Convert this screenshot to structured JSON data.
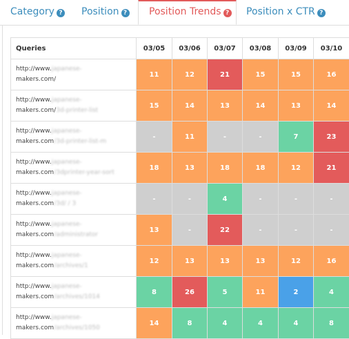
{
  "tabs": [
    {
      "label": "Category",
      "active": false
    },
    {
      "label": "Position",
      "active": false
    },
    {
      "label": "Position Trends",
      "active": true
    },
    {
      "label": "Position x CTR",
      "active": false
    }
  ],
  "table": {
    "query_header": "Queries",
    "dates": [
      "03/05",
      "03/06",
      "03/07",
      "03/08",
      "03/09",
      "03/10"
    ],
    "rows": [
      {
        "line1": "http://www.",
        "b1": "japanese-",
        "line2": "makers.com/",
        "b2": "",
        "cells": [
          {
            "v": "11",
            "c": "orange"
          },
          {
            "v": "12",
            "c": "orange"
          },
          {
            "v": "21",
            "c": "red"
          },
          {
            "v": "15",
            "c": "orange"
          },
          {
            "v": "15",
            "c": "orange"
          },
          {
            "v": "16",
            "c": "orange"
          }
        ]
      },
      {
        "line1": "http://www.",
        "b1": "japanese-",
        "line2": "makers.com/",
        "b2": "3d-printer-list",
        "cells": [
          {
            "v": "15",
            "c": "orange"
          },
          {
            "v": "14",
            "c": "orange"
          },
          {
            "v": "13",
            "c": "orange"
          },
          {
            "v": "14",
            "c": "orange"
          },
          {
            "v": "13",
            "c": "orange"
          },
          {
            "v": "14",
            "c": "orange"
          }
        ]
      },
      {
        "line1": "http://www.",
        "b1": "japanese-",
        "line2": "makers.com",
        "b2": "/3d-printer-list-m",
        "cells": [
          {
            "v": "-",
            "c": "gray"
          },
          {
            "v": "11",
            "c": "orange"
          },
          {
            "v": "-",
            "c": "gray"
          },
          {
            "v": "-",
            "c": "gray"
          },
          {
            "v": "7",
            "c": "green"
          },
          {
            "v": "23",
            "c": "red"
          }
        ]
      },
      {
        "line1": "http://www.",
        "b1": "japanese-",
        "line2": "makers.com",
        "b2": "/3dprinter-year-sort",
        "cells": [
          {
            "v": "18",
            "c": "orange"
          },
          {
            "v": "13",
            "c": "orange"
          },
          {
            "v": "18",
            "c": "orange"
          },
          {
            "v": "18",
            "c": "orange"
          },
          {
            "v": "12",
            "c": "orange"
          },
          {
            "v": "21",
            "c": "red"
          }
        ]
      },
      {
        "line1": "http://www.",
        "b1": "japanese-",
        "line2": "makers.com",
        "b2": "/3d/ / 3",
        "cells": [
          {
            "v": "-",
            "c": "gray"
          },
          {
            "v": "-",
            "c": "gray"
          },
          {
            "v": "4",
            "c": "green"
          },
          {
            "v": "-",
            "c": "gray"
          },
          {
            "v": "-",
            "c": "gray"
          },
          {
            "v": "-",
            "c": "gray"
          }
        ]
      },
      {
        "line1": "http://www.",
        "b1": "japanese-",
        "line2": "makers.com",
        "b2": "/administrator",
        "cells": [
          {
            "v": "13",
            "c": "orange"
          },
          {
            "v": "-",
            "c": "gray"
          },
          {
            "v": "22",
            "c": "red"
          },
          {
            "v": "-",
            "c": "gray"
          },
          {
            "v": "-",
            "c": "gray"
          },
          {
            "v": "-",
            "c": "gray"
          }
        ]
      },
      {
        "line1": "http://www.",
        "b1": "japanese-",
        "line2": "makers.com",
        "b2": "/archives/1",
        "cells": [
          {
            "v": "12",
            "c": "orange"
          },
          {
            "v": "13",
            "c": "orange"
          },
          {
            "v": "13",
            "c": "orange"
          },
          {
            "v": "13",
            "c": "orange"
          },
          {
            "v": "12",
            "c": "orange"
          },
          {
            "v": "16",
            "c": "orange"
          }
        ]
      },
      {
        "line1": "http://www.",
        "b1": "japanese-",
        "line2": "makers.com",
        "b2": "/archives/1014",
        "cells": [
          {
            "v": "8",
            "c": "green"
          },
          {
            "v": "26",
            "c": "red"
          },
          {
            "v": "5",
            "c": "green"
          },
          {
            "v": "11",
            "c": "orange"
          },
          {
            "v": "2",
            "c": "blue"
          },
          {
            "v": "4",
            "c": "green"
          }
        ]
      },
      {
        "line1": "http://www.",
        "b1": "japanese-",
        "line2": "makers.com",
        "b2": "/archives/1050",
        "cells": [
          {
            "v": "14",
            "c": "orange"
          },
          {
            "v": "8",
            "c": "green"
          },
          {
            "v": "4",
            "c": "green"
          },
          {
            "v": "4",
            "c": "green"
          },
          {
            "v": "4",
            "c": "green"
          },
          {
            "v": "8",
            "c": "green"
          }
        ]
      }
    ]
  }
}
